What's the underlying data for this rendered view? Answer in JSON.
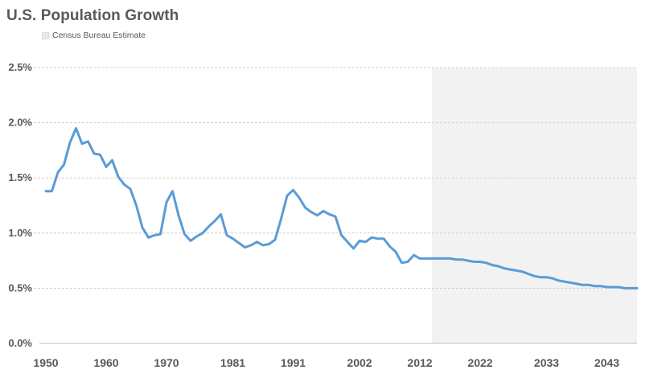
{
  "chart_data": {
    "type": "line",
    "title": "U.S. Population  Growth",
    "legend": [
      {
        "label": "Census Bureau Estimate",
        "color": "#f2f2f2"
      }
    ],
    "legend_position": "top-left",
    "xlabel": "",
    "ylabel": "",
    "x_ticks": [
      "1950",
      "1960",
      "1970",
      "1981",
      "1991",
      "2002",
      "2012",
      "2022",
      "2033",
      "2043"
    ],
    "y_ticks": [
      "0.0%",
      "0.5%",
      "1.0%",
      "1.5%",
      "2.0%",
      "2.5%"
    ],
    "ylim": [
      0,
      0.025
    ],
    "xlim": [
      1950,
      2048
    ],
    "grid": "horizontal dashed",
    "estimate_region": {
      "start": 2014,
      "end": 2048,
      "color": "#f2f2f2"
    },
    "line_color": "#5b9bd5",
    "series": [
      {
        "x": [
          1950,
          1951,
          1952,
          1953,
          1954,
          1955,
          1956,
          1957,
          1958,
          1959,
          1960,
          1961,
          1962,
          1963,
          1964,
          1965,
          1966,
          1967,
          1968,
          1969,
          1970,
          1971,
          1972,
          1973,
          1974,
          1975,
          1976,
          1977,
          1978,
          1979,
          1980,
          1981,
          1982,
          1983,
          1984,
          1985,
          1986,
          1987,
          1988,
          1989,
          1990,
          1991,
          1992,
          1993,
          1994,
          1995,
          1996,
          1997,
          1998,
          1999,
          2000,
          2001,
          2002,
          2003,
          2004,
          2005,
          2006,
          2007,
          2008,
          2009,
          2010,
          2011,
          2012,
          2013,
          2014,
          2015,
          2016,
          2017,
          2018,
          2019,
          2020,
          2021,
          2022,
          2023,
          2024,
          2025,
          2026,
          2027,
          2028,
          2029,
          2030,
          2031,
          2032,
          2033,
          2034,
          2035,
          2036,
          2037,
          2038,
          2039,
          2040,
          2041,
          2042,
          2043,
          2044,
          2045,
          2046,
          2047,
          2048
        ],
        "values": [
          0.0138,
          0.0138,
          0.0155,
          0.0162,
          0.0182,
          0.0195,
          0.0181,
          0.0183,
          0.0172,
          0.0171,
          0.016,
          0.0166,
          0.0151,
          0.0144,
          0.014,
          0.0125,
          0.0105,
          0.0096,
          0.0098,
          0.0099,
          0.0128,
          0.0138,
          0.0116,
          0.0099,
          0.0093,
          0.0097,
          0.01,
          0.0106,
          0.0111,
          0.0117,
          0.0098,
          0.0095,
          0.0091,
          0.0087,
          0.0089,
          0.0092,
          0.0089,
          0.009,
          0.0094,
          0.0113,
          0.0134,
          0.0139,
          0.0132,
          0.0123,
          0.0119,
          0.0116,
          0.012,
          0.0117,
          0.0115,
          0.0098,
          0.0092,
          0.0086,
          0.0093,
          0.0092,
          0.0096,
          0.0095,
          0.0095,
          0.0088,
          0.0083,
          0.0073,
          0.0074,
          0.008,
          0.0077,
          0.0077,
          0.0077,
          0.0077,
          0.0077,
          0.0077,
          0.0076,
          0.0076,
          0.0075,
          0.0074,
          0.0074,
          0.0073,
          0.0071,
          0.007,
          0.0068,
          0.0067,
          0.0066,
          0.0065,
          0.0063,
          0.0061,
          0.006,
          0.006,
          0.0059,
          0.0057,
          0.0056,
          0.0055,
          0.0054,
          0.0053,
          0.0053,
          0.0052,
          0.0052,
          0.0051,
          0.0051,
          0.0051,
          0.005,
          0.005,
          0.005
        ]
      }
    ]
  }
}
